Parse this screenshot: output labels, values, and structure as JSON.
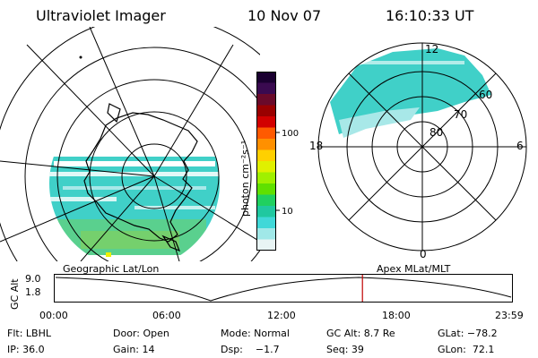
{
  "header": {
    "instrument": "Ultraviolet Imager",
    "date": "10 Nov 07",
    "time": "16:10:33 UT"
  },
  "colorbar": {
    "unit_label": "photon cm⁻²s⁻¹",
    "ticks": [
      "100",
      "10"
    ],
    "colors": [
      "#1a0030",
      "#3a0a50",
      "#6a0a2a",
      "#9a0000",
      "#d20000",
      "#ff5a00",
      "#ff9000",
      "#ffd000",
      "#e0f000",
      "#a0f000",
      "#60e000",
      "#20d060",
      "#20c8a0",
      "#40d8d8",
      "#a0e8e8",
      "#e8f4f4"
    ]
  },
  "left_map": {
    "label": "Geographic Lat/Lon"
  },
  "right_map": {
    "label": "Apex MLat/MLT",
    "mlt_labels": {
      "top": "12",
      "left": "18",
      "right": "6",
      "bottom": "0"
    },
    "lat_labels": [
      "60",
      "70",
      "80"
    ]
  },
  "timeline": {
    "axis_title": "GC Alt",
    "y_ticks": [
      "9.0",
      "1.8"
    ],
    "x_ticks": [
      "00:00",
      "06:00",
      "12:00",
      "18:00",
      "23:59"
    ],
    "current_time_fraction": 0.673
  },
  "status": {
    "row1": {
      "flt": "Flt: LBHL",
      "door": "Door: Open",
      "mode": "Mode: Normal",
      "gc_alt": "GC Alt: 8.7 Re",
      "glat": "GLat: −78.2"
    },
    "row2": {
      "ip": "IP: 36.0",
      "gain": "Gain: 14",
      "dsp": "Dsp:    −1.7",
      "seq": "Seq: 39",
      "glon": "GLon:  72.1"
    }
  }
}
